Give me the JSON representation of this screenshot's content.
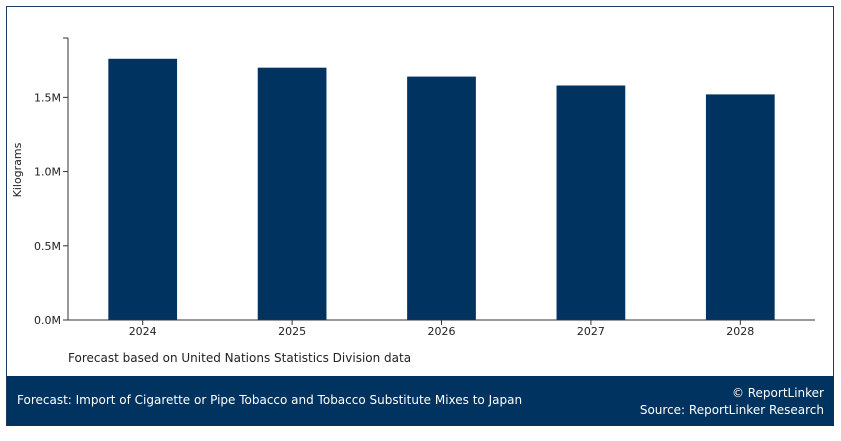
{
  "chart_data": {
    "type": "bar",
    "categories": [
      "2024",
      "2025",
      "2026",
      "2027",
      "2028"
    ],
    "values": [
      1760000,
      1700000,
      1640000,
      1580000,
      1520000
    ],
    "xlabel": "",
    "ylabel": "Kilograms",
    "ylim": [
      0,
      1900000
    ],
    "yticks": [
      0,
      500000,
      1000000,
      1500000
    ],
    "ytick_labels": [
      "0.0M",
      "0.5M",
      "1.0M",
      "1.5M"
    ],
    "grid": false,
    "bar_color": "#00335f"
  },
  "note": "Forecast based on United Nations Statistics Division data",
  "footer": {
    "title": "Forecast: Import of Cigarette or Pipe Tobacco and Tobacco Substitute Mixes to Japan",
    "copyright": "© ReportLinker",
    "source": "Source:  ReportLinker Research",
    "background": "#00335f"
  }
}
